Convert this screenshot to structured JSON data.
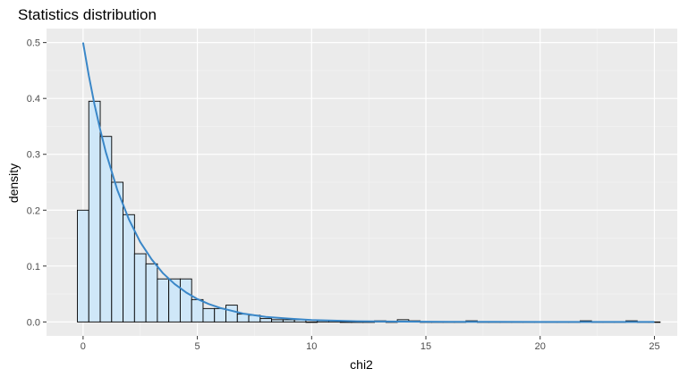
{
  "chart_data": {
    "type": "bar",
    "title": "Statistics distribution",
    "xlabel": "chi2",
    "ylabel": "density",
    "xlim": [
      -1.6,
      26.0
    ],
    "ylim": [
      -0.025,
      0.525
    ],
    "x_ticks": [
      0,
      5,
      10,
      15,
      20,
      25
    ],
    "x_tick_labels": [
      "0",
      "5",
      "10",
      "15",
      "20",
      "25"
    ],
    "y_ticks": [
      0.0,
      0.1,
      0.2,
      0.3,
      0.4,
      0.5
    ],
    "y_tick_labels": [
      "0.0",
      "0.1",
      "0.2",
      "0.3",
      "0.4",
      "0.5"
    ],
    "grid": true,
    "legend": "none",
    "histogram": {
      "bin_width": 0.5,
      "bin_start": -0.25,
      "densities": [
        0.2,
        0.395,
        0.332,
        0.25,
        0.192,
        0.122,
        0.104,
        0.077,
        0.077,
        0.077,
        0.04,
        0.024,
        0.024,
        0.03,
        0.014,
        0.012,
        0.006,
        0.004,
        0.004,
        0.004,
        0.0,
        0.002,
        0.002,
        0.0,
        0.0,
        0.0,
        0.002,
        0.0,
        0.004,
        0.002,
        0.0,
        0.0,
        0.0,
        0.0,
        0.002,
        0.0,
        0.0,
        0.0,
        0.0,
        0.0,
        0.0,
        0.0,
        0.0,
        0.0,
        0.002,
        0.0,
        0.0,
        0.0,
        0.002,
        0.0,
        0.0
      ],
      "fill": "#cfe7f8",
      "stroke": "#000000"
    },
    "series": [
      {
        "type": "line",
        "x": [
          0,
          0.25,
          0.5,
          0.75,
          1,
          1.5,
          2,
          2.5,
          3,
          3.5,
          4,
          4.5,
          5,
          5.5,
          6,
          7,
          8,
          9,
          10,
          12,
          14,
          16,
          18,
          20,
          22,
          24,
          25
        ],
        "y": [
          0.5,
          0.441,
          0.389,
          0.344,
          0.303,
          0.236,
          0.184,
          0.143,
          0.112,
          0.087,
          0.068,
          0.053,
          0.041,
          0.032,
          0.025,
          0.015,
          0.009,
          0.006,
          0.0034,
          0.0012,
          0.0005,
          0.0002,
          0.0001,
          0.0,
          0.0,
          0.0,
          0.0
        ],
        "color": "#3a87c8"
      }
    ],
    "colors": {
      "panel_background": "#ebebeb",
      "grid_major": "#ffffff",
      "grid_minor": "#f5f5f5",
      "tick_text": "#4d4d4d",
      "tick_mark": "#333333"
    }
  }
}
